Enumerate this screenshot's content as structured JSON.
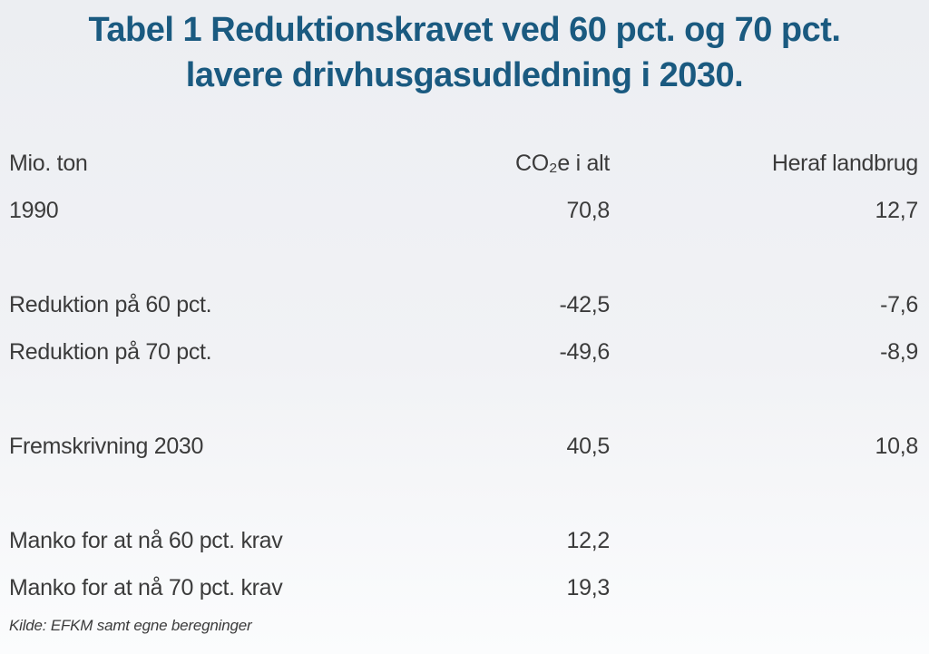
{
  "figure": {
    "title_line1": "Tabel 1 Reduktionskravet ved 60 pct. og 70 pct.",
    "title_line2": "lavere drivhusgasudledning i 2030.",
    "source": "Kilde: EFKM samt egne beregninger"
  },
  "table": {
    "columns": [
      "Mio. ton",
      "CO₂e i alt",
      "Heraf landbrug"
    ],
    "rows": [
      {
        "label": "1990",
        "co2e": "70,8",
        "landbrug": "12,7"
      },
      {
        "label": "Reduktion på 60 pct.",
        "co2e": "-42,5",
        "landbrug": "-7,6"
      },
      {
        "label": "Reduktion på 70 pct.",
        "co2e": "-49,6",
        "landbrug": "-8,9"
      },
      {
        "label": "Fremskrivning 2030",
        "co2e": "40,5",
        "landbrug": "10,8"
      },
      {
        "label": "Manko for at nå 60 pct. krav",
        "co2e": "12,2",
        "landbrug": ""
      },
      {
        "label": "Manko for at nå 70 pct. krav",
        "co2e": "19,3",
        "landbrug": ""
      }
    ]
  },
  "colors": {
    "title": "#1a5a80",
    "text": "#3b3b3b",
    "background_top": "#eceef2",
    "background_bottom": "#fbfcfd"
  },
  "chart_data": {
    "type": "table",
    "title": "Tabel 1 Reduktionskravet ved 60 pct. og 70 pct. lavere drivhusgasudledning i 2030.",
    "unit": "Mio. ton",
    "columns": [
      "CO₂e i alt",
      "Heraf landbrug"
    ],
    "rows": [
      {
        "label": "1990",
        "values": [
          70.8,
          12.7
        ]
      },
      {
        "label": "Reduktion på 60 pct.",
        "values": [
          -42.5,
          -7.6
        ]
      },
      {
        "label": "Reduktion på 70 pct.",
        "values": [
          -49.6,
          -8.9
        ]
      },
      {
        "label": "Fremskrivning 2030",
        "values": [
          40.5,
          10.8
        ]
      },
      {
        "label": "Manko for at nå 60 pct. krav",
        "values": [
          12.2,
          null
        ]
      },
      {
        "label": "Manko for at nå 70 pct. krav",
        "values": [
          19.3,
          null
        ]
      }
    ],
    "source": "Kilde: EFKM samt egne beregninger",
    "layout": {
      "row_groups": [
        [
          0
        ],
        [
          1,
          2
        ],
        [
          3
        ],
        [
          4,
          5
        ]
      ],
      "value_alignment": "right"
    }
  }
}
